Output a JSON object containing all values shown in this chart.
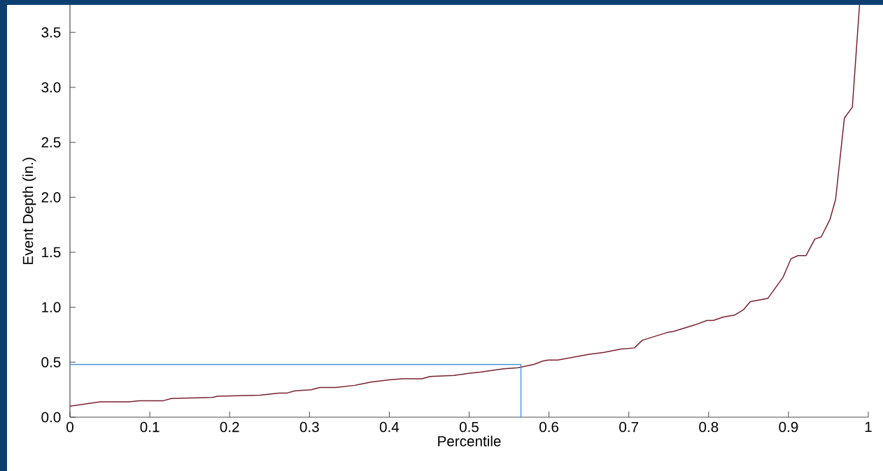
{
  "chart_data": {
    "type": "line",
    "xlabel": "Percentile",
    "ylabel": "Event Depth (in.)",
    "xlim": [
      0,
      1
    ],
    "ylim": [
      0,
      3.75
    ],
    "xticks": [
      0,
      0.1,
      0.2,
      0.3,
      0.4,
      0.5,
      0.6,
      0.7,
      0.8,
      0.9,
      1
    ],
    "yticks": [
      {
        "value": 0,
        "label": "0.0"
      },
      {
        "value": 0.5,
        "label": "0.5"
      },
      {
        "value": 1,
        "label": "1.0"
      },
      {
        "value": 1.5,
        "label": "1.5"
      },
      {
        "value": 2,
        "label": "2.0"
      },
      {
        "value": 2.5,
        "label": "2.5"
      },
      {
        "value": 3,
        "label": "3.0"
      },
      {
        "value": 3.5,
        "label": "3.5"
      }
    ],
    "grid": false,
    "marker": "none",
    "line_style": "solid",
    "series": [
      {
        "color": "#7a2030",
        "x": [
          0,
          0.038,
          0.074,
          0.087,
          0.117,
          0.127,
          0.178,
          0.185,
          0.238,
          0.262,
          0.272,
          0.282,
          0.302,
          0.313,
          0.333,
          0.357,
          0.377,
          0.4,
          0.417,
          0.441,
          0.451,
          0.481,
          0.501,
          0.514,
          0.543,
          0.561,
          0.581,
          0.592,
          0.599,
          0.611,
          0.649,
          0.669,
          0.69,
          0.707,
          0.717,
          0.748,
          0.756,
          0.783,
          0.798,
          0.806,
          0.818,
          0.833,
          0.844,
          0.852,
          0.874,
          0.893,
          0.903,
          0.912,
          0.922,
          0.933,
          0.941,
          0.952,
          0.959,
          0.97,
          0.98,
          0.989
        ],
        "values": [
          0.1,
          0.14,
          0.14,
          0.15,
          0.15,
          0.17,
          0.18,
          0.19,
          0.2,
          0.22,
          0.22,
          0.24,
          0.25,
          0.27,
          0.27,
          0.29,
          0.32,
          0.34,
          0.35,
          0.35,
          0.37,
          0.38,
          0.4,
          0.41,
          0.44,
          0.45,
          0.48,
          0.51,
          0.52,
          0.52,
          0.57,
          0.59,
          0.62,
          0.63,
          0.7,
          0.77,
          0.78,
          0.84,
          0.88,
          0.88,
          0.91,
          0.93,
          0.98,
          1.05,
          1.08,
          1.27,
          1.44,
          1.47,
          1.47,
          1.62,
          1.64,
          1.8,
          1.98,
          2.72,
          2.82,
          3.75
        ]
      },
      {
        "color": "#3c8ad8",
        "x": [
          0,
          0.565,
          0.565
        ],
        "values": [
          0.48,
          0.48,
          0
        ]
      }
    ]
  }
}
